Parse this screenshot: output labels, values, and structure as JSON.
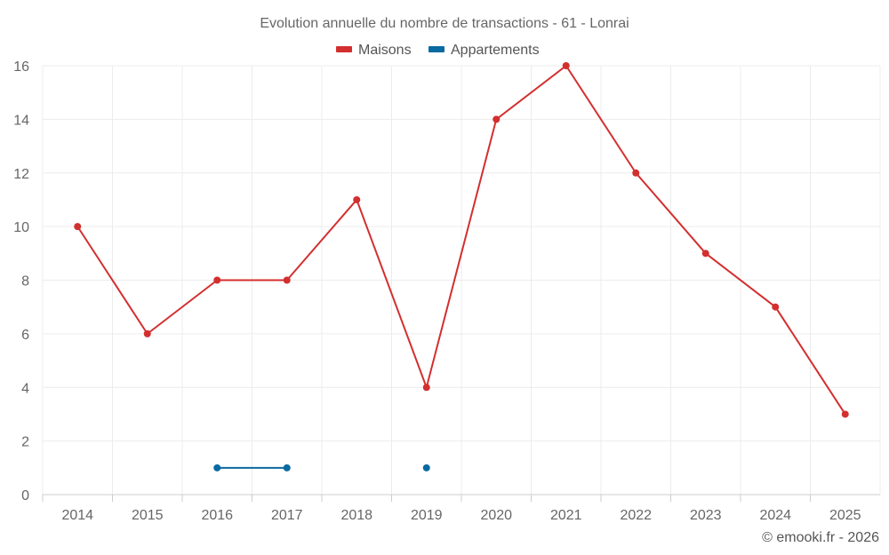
{
  "chart_data": {
    "type": "line",
    "title": "Evolution annuelle du nombre de transactions - 61 - Lonrai",
    "categories": [
      "2014",
      "2015",
      "2016",
      "2017",
      "2018",
      "2019",
      "2020",
      "2021",
      "2022",
      "2023",
      "2024",
      "2025"
    ],
    "ylim": [
      0,
      16
    ],
    "yticks": [
      0,
      2,
      4,
      6,
      8,
      10,
      12,
      14,
      16
    ],
    "grid": true,
    "legend_position": "top-center",
    "series": [
      {
        "name": "Maisons",
        "color": "#d32f2f",
        "values": [
          10,
          6,
          8,
          8,
          11,
          4,
          14,
          16,
          12,
          9,
          7,
          3
        ]
      },
      {
        "name": "Appartements",
        "color": "#0a6aa1",
        "values": [
          null,
          null,
          1,
          1,
          null,
          1,
          null,
          null,
          null,
          null,
          null,
          null
        ]
      }
    ]
  },
  "credits": "© emooki.fr - 2026"
}
